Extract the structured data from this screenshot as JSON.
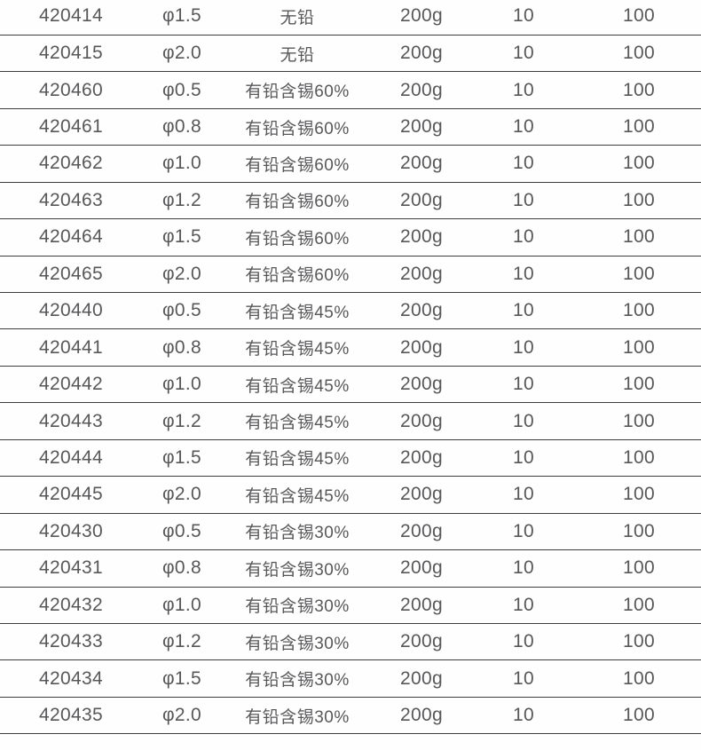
{
  "table": {
    "semantic": "product-spec-table",
    "columns": [
      {
        "key": "code",
        "name": "product-code-column"
      },
      {
        "key": "diameter",
        "name": "diameter-column"
      },
      {
        "key": "material",
        "name": "material-column"
      },
      {
        "key": "weight",
        "name": "net-weight-column"
      },
      {
        "key": "inner_qty",
        "name": "inner-pack-qty-column"
      },
      {
        "key": "carton_qty",
        "name": "carton-qty-column"
      }
    ],
    "rows": [
      [
        "420414",
        "φ1.5",
        "无铅",
        "200g",
        "10",
        "100"
      ],
      [
        "420415",
        "φ2.0",
        "无铅",
        "200g",
        "10",
        "100"
      ],
      [
        "420460",
        "φ0.5",
        "有铅含锡60%",
        "200g",
        "10",
        "100"
      ],
      [
        "420461",
        "φ0.8",
        "有铅含锡60%",
        "200g",
        "10",
        "100"
      ],
      [
        "420462",
        "φ1.0",
        "有铅含锡60%",
        "200g",
        "10",
        "100"
      ],
      [
        "420463",
        "φ1.2",
        "有铅含锡60%",
        "200g",
        "10",
        "100"
      ],
      [
        "420464",
        "φ1.5",
        "有铅含锡60%",
        "200g",
        "10",
        "100"
      ],
      [
        "420465",
        "φ2.0",
        "有铅含锡60%",
        "200g",
        "10",
        "100"
      ],
      [
        "420440",
        "φ0.5",
        "有铅含锡45%",
        "200g",
        "10",
        "100"
      ],
      [
        "420441",
        "φ0.8",
        "有铅含锡45%",
        "200g",
        "10",
        "100"
      ],
      [
        "420442",
        "φ1.0",
        "有铅含锡45%",
        "200g",
        "10",
        "100"
      ],
      [
        "420443",
        "φ1.2",
        "有铅含锡45%",
        "200g",
        "10",
        "100"
      ],
      [
        "420444",
        "φ1.5",
        "有铅含锡45%",
        "200g",
        "10",
        "100"
      ],
      [
        "420445",
        "φ2.0",
        "有铅含锡45%",
        "200g",
        "10",
        "100"
      ],
      [
        "420430",
        "φ0.5",
        "有铅含锡30%",
        "200g",
        "10",
        "100"
      ],
      [
        "420431",
        "φ0.8",
        "有铅含锡30%",
        "200g",
        "10",
        "100"
      ],
      [
        "420432",
        "φ1.0",
        "有铅含锡30%",
        "200g",
        "10",
        "100"
      ],
      [
        "420433",
        "φ1.2",
        "有铅含锡30%",
        "200g",
        "10",
        "100"
      ],
      [
        "420434",
        "φ1.5",
        "有铅含锡30%",
        "200g",
        "10",
        "100"
      ],
      [
        "420435",
        "φ2.0",
        "有铅含锡30%",
        "200g",
        "10",
        "100"
      ]
    ]
  },
  "colors": {
    "background": "#fefefe",
    "row_divider": "#3d3d3f",
    "text": "#58585a"
  }
}
